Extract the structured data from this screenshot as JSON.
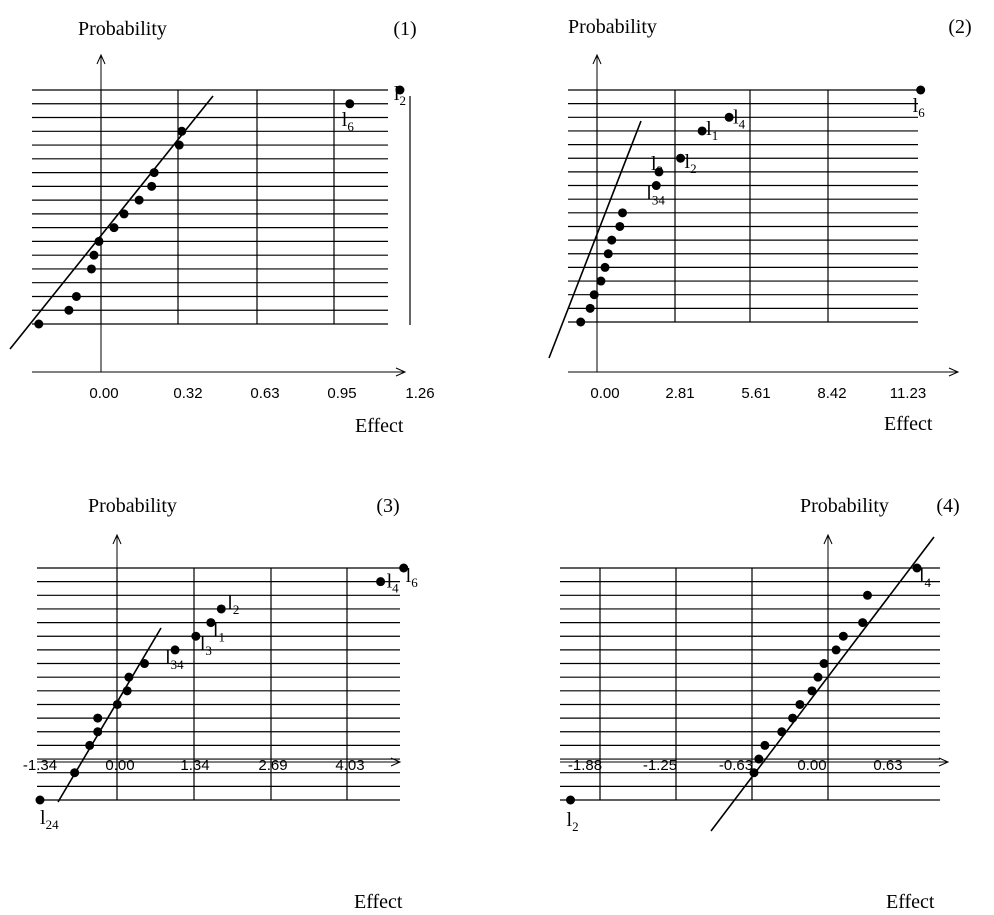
{
  "figure": {
    "background": "#ffffff",
    "ink": "#000000"
  },
  "chart_data": [
    {
      "type": "scatter",
      "panel_label": "(1)",
      "ylabel": "Probability",
      "xlabel": "Effect",
      "x_ticks": [
        "0.00",
        "0.32",
        "0.63",
        "0.95",
        "1.26"
      ],
      "x_tick_values": [
        0.0,
        0.32,
        0.63,
        0.95,
        1.26
      ],
      "gridlines": 18,
      "points": [
        {
          "x": -0.26,
          "row": 0,
          "label": ""
        },
        {
          "x": -0.14,
          "row": 1,
          "label": ""
        },
        {
          "x": -0.11,
          "row": 2,
          "label": ""
        },
        {
          "x": -0.05,
          "row": 4,
          "label": ""
        },
        {
          "x": -0.04,
          "row": 5,
          "label": ""
        },
        {
          "x": -0.02,
          "row": 6,
          "label": ""
        },
        {
          "x": 0.04,
          "row": 7,
          "label": ""
        },
        {
          "x": 0.08,
          "row": 8,
          "label": ""
        },
        {
          "x": 0.14,
          "row": 9,
          "label": ""
        },
        {
          "x": 0.19,
          "row": 10,
          "label": ""
        },
        {
          "x": 0.2,
          "row": 11,
          "label": ""
        },
        {
          "x": 0.3,
          "row": 13,
          "label": ""
        },
        {
          "x": 0.31,
          "row": 14,
          "label": ""
        },
        {
          "x": 0.98,
          "row": 16,
          "label": "l",
          "label_sub": "6"
        },
        {
          "x": 1.18,
          "row": 17,
          "label": "l",
          "label_sub": "2"
        }
      ]
    },
    {
      "type": "scatter",
      "panel_label": "(2)",
      "ylabel": "Probability",
      "xlabel": "Effect",
      "x_ticks": [
        "0.00",
        "2.81",
        "5.61",
        "8.42",
        "11.23"
      ],
      "x_tick_values": [
        0.0,
        2.81,
        5.61,
        8.42,
        11.23
      ],
      "gridlines": 18,
      "points": [
        {
          "x": -0.9,
          "row": 0,
          "label": ""
        },
        {
          "x": -0.55,
          "row": 1,
          "label": ""
        },
        {
          "x": -0.4,
          "row": 2,
          "label": ""
        },
        {
          "x": -0.15,
          "row": 3,
          "label": ""
        },
        {
          "x": 0.0,
          "row": 4,
          "label": ""
        },
        {
          "x": 0.12,
          "row": 5,
          "label": ""
        },
        {
          "x": 0.25,
          "row": 6,
          "label": ""
        },
        {
          "x": 0.55,
          "row": 7,
          "label": ""
        },
        {
          "x": 0.65,
          "row": 8,
          "label": ""
        },
        {
          "x": 1.9,
          "row": 10,
          "label": "l",
          "label_sub": "34"
        },
        {
          "x": 2.0,
          "row": 11,
          "label": "l",
          "label_sub": "3"
        },
        {
          "x": 2.8,
          "row": 12,
          "label": "l",
          "label_sub": "2"
        },
        {
          "x": 3.6,
          "row": 14,
          "label": "l",
          "label_sub": "1"
        },
        {
          "x": 4.6,
          "row": 15,
          "label": "l",
          "label_sub": "4"
        },
        {
          "x": 11.7,
          "row": 17,
          "label": "l",
          "label_sub": "6"
        }
      ]
    },
    {
      "type": "scatter",
      "panel_label": "(3)",
      "ylabel": "Probability",
      "xlabel": "Effect",
      "x_ticks": [
        "-1.34",
        "0.00",
        "1.34",
        "2.69",
        "4.03"
      ],
      "x_tick_values": [
        -1.34,
        0.0,
        1.34,
        2.69,
        4.03
      ],
      "gridlines": 18,
      "points": [
        {
          "x": -1.34,
          "row": 0,
          "label": "l",
          "label_sub": "24"
        },
        {
          "x": -0.74,
          "row": 2,
          "label": ""
        },
        {
          "x": -0.48,
          "row": 4,
          "label": ""
        },
        {
          "x": -0.34,
          "row": 5,
          "label": ""
        },
        {
          "x": -0.34,
          "row": 6,
          "label": ""
        },
        {
          "x": 0.0,
          "row": 7,
          "label": ""
        },
        {
          "x": 0.17,
          "row": 8,
          "label": ""
        },
        {
          "x": 0.2,
          "row": 9,
          "label": ""
        },
        {
          "x": 0.47,
          "row": 10,
          "label": ""
        },
        {
          "x": 1.0,
          "row": 11,
          "label": "l",
          "label_sub": "34"
        },
        {
          "x": 1.36,
          "row": 12,
          "label": "l",
          "label_sub": "3"
        },
        {
          "x": 1.62,
          "row": 13,
          "label": "l",
          "label_sub": "1"
        },
        {
          "x": 1.8,
          "row": 14,
          "label": "l",
          "label_sub": "2"
        },
        {
          "x": 4.56,
          "row": 16,
          "label": "l",
          "label_sub": "4"
        },
        {
          "x": 4.96,
          "row": 17,
          "label": "l",
          "label_sub": "6"
        }
      ]
    },
    {
      "type": "scatter",
      "panel_label": "(4)",
      "ylabel": "Probability",
      "xlabel": "Effect",
      "x_ticks": [
        "-1.88",
        "-1.25",
        "-0.63",
        "0.00",
        "0.63"
      ],
      "x_tick_values": [
        -1.88,
        -1.25,
        -0.63,
        0.0,
        0.63
      ],
      "gridlines": 18,
      "points": [
        {
          "x": -2.0,
          "row": 0,
          "label": "l",
          "label_sub": "2"
        },
        {
          "x": -0.48,
          "row": 2,
          "label": ""
        },
        {
          "x": -0.44,
          "row": 3,
          "label": ""
        },
        {
          "x": -0.39,
          "row": 4,
          "label": ""
        },
        {
          "x": -0.25,
          "row": 5,
          "label": ""
        },
        {
          "x": -0.16,
          "row": 6,
          "label": ""
        },
        {
          "x": -0.1,
          "row": 7,
          "label": ""
        },
        {
          "x": 0.0,
          "row": 8,
          "label": ""
        },
        {
          "x": 0.05,
          "row": 9,
          "label": ""
        },
        {
          "x": 0.1,
          "row": 10,
          "label": ""
        },
        {
          "x": 0.2,
          "row": 11,
          "label": ""
        },
        {
          "x": 0.26,
          "row": 12,
          "label": ""
        },
        {
          "x": 0.42,
          "row": 13,
          "label": ""
        },
        {
          "x": 0.46,
          "row": 15,
          "label": ""
        },
        {
          "x": 0.87,
          "row": 17,
          "label": "l",
          "label_sub": "4"
        }
      ]
    }
  ]
}
